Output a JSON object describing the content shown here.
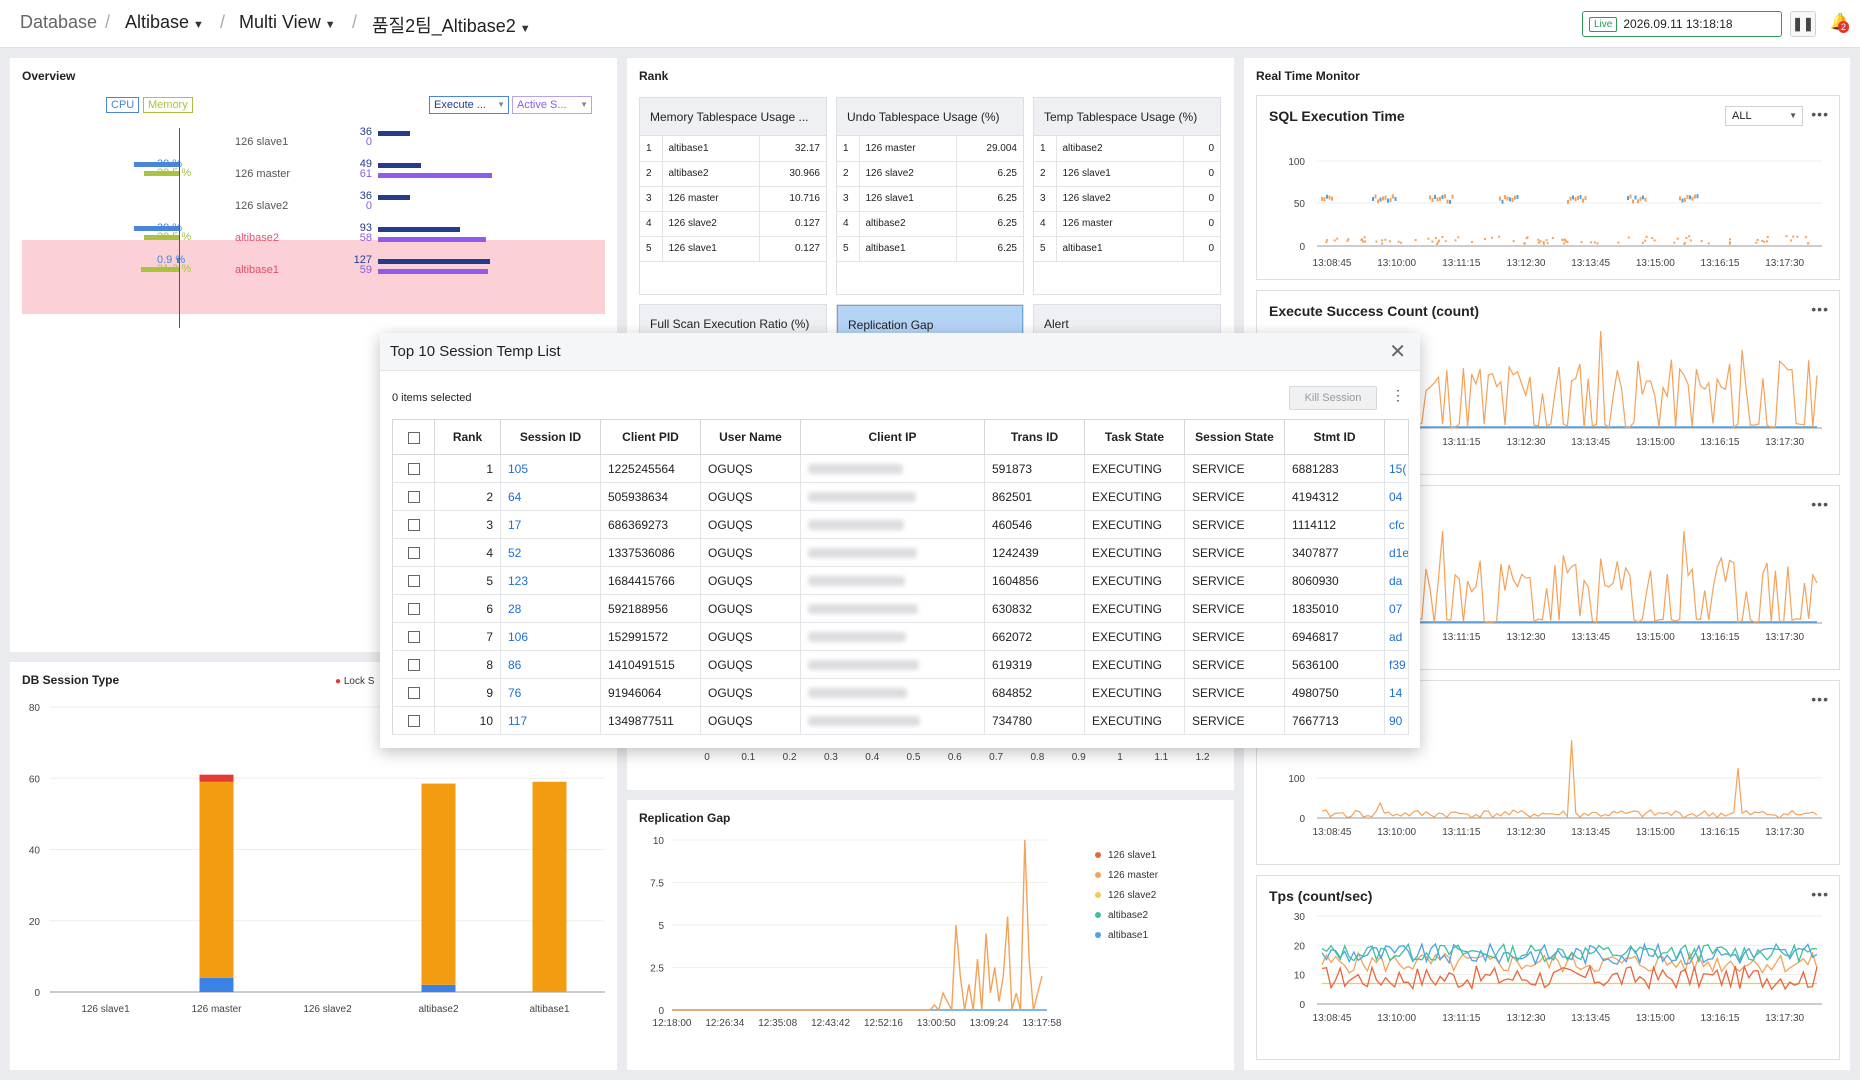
{
  "breadcrumb": {
    "root": "Database",
    "db": "Altibase",
    "view": "Multi View",
    "group": "품질2팀_Altibase2"
  },
  "live": {
    "badge": "Live",
    "timestamp": "2026.09.11 13:18:18"
  },
  "notifications": {
    "count": "2"
  },
  "overview": {
    "title": "Overview",
    "toggles": {
      "cpu": "CPU",
      "memory": "Memory"
    },
    "selects": [
      "Execute ...",
      "Active S..."
    ],
    "rows": [
      {
        "name": "126 slave1",
        "cpu": "",
        "mem": "",
        "exec": "36",
        "active": "0",
        "cpu_v": 0,
        "mem_v": 0,
        "exec_v": 36,
        "active_v": 0,
        "alert": false
      },
      {
        "name": "126 master",
        "cpu": "39 %",
        "mem": "29.5 %",
        "exec": "49",
        "active": "61",
        "cpu_v": 39,
        "mem_v": 29.5,
        "exec_v": 49,
        "active_v": 61,
        "alert": false
      },
      {
        "name": "126 slave2",
        "cpu": "",
        "mem": "",
        "exec": "36",
        "active": "0",
        "cpu_v": 0,
        "mem_v": 0,
        "exec_v": 36,
        "active_v": 0,
        "alert": false
      },
      {
        "name": "altibase2",
        "cpu": "39 %",
        "mem": "29.5 %",
        "exec": "93",
        "active": "58",
        "cpu_v": 39,
        "mem_v": 29.5,
        "exec_v": 93,
        "active_v": 58,
        "alert": true
      },
      {
        "name": "altibase1",
        "cpu": "0.9 %",
        "mem": "31.3 %",
        "exec": "127",
        "active": "59",
        "cpu_v": 0.9,
        "mem_v": 31.3,
        "exec_v": 127,
        "active_v": 59,
        "alert": true
      }
    ],
    "colors": {
      "cpu": "#4a85d8",
      "mem": "#a9c23f",
      "exec": "#233c8c",
      "active": "#8e5ce6",
      "alert_bg": "#fbd0d7",
      "alert_text": "#e0506a"
    }
  },
  "rank": {
    "title": "Rank",
    "tables": [
      {
        "title": "Memory Tablespace Usage ...",
        "rows": [
          [
            "1",
            "altibase1",
            "32.17"
          ],
          [
            "2",
            "altibase2",
            "30.966"
          ],
          [
            "3",
            "126 master",
            "10.716"
          ],
          [
            "4",
            "126 slave2",
            "0.127"
          ],
          [
            "5",
            "126 slave1",
            "0.127"
          ]
        ]
      },
      {
        "title": "Undo Tablespace Usage (%)",
        "rows": [
          [
            "1",
            "126 master",
            "29.004"
          ],
          [
            "2",
            "126 slave2",
            "6.25"
          ],
          [
            "3",
            "126 slave1",
            "6.25"
          ],
          [
            "4",
            "altibase2",
            "6.25"
          ],
          [
            "5",
            "altibase1",
            "6.25"
          ]
        ]
      },
      {
        "title": "Temp Tablespace Usage (%)",
        "rows": [
          [
            "1",
            "altibase2",
            "0"
          ],
          [
            "2",
            "126 slave1",
            "0"
          ],
          [
            "3",
            "126 slave2",
            "0"
          ],
          [
            "4",
            "126 master",
            "0"
          ],
          [
            "5",
            "altibase1",
            "0"
          ]
        ]
      }
    ],
    "second_row": [
      "Full Scan Execution Ratio (%)",
      "Replication Gap",
      "Alert"
    ]
  },
  "hidden_axis": {
    "ticks": [
      "0",
      "0.1",
      "0.2",
      "0.3",
      "0.4",
      "0.5",
      "0.6",
      "0.7",
      "0.8",
      "0.9",
      "1",
      "1.1",
      "1.2"
    ]
  },
  "realtime": {
    "title": "Real Time Monitor",
    "select_value": "ALL",
    "x_ticks": [
      "13:08:45",
      "13:10:00",
      "13:11:15",
      "13:12:30",
      "13:13:45",
      "13:15:00",
      "13:16:15",
      "13:17:30"
    ],
    "sql_exec": {
      "title": "SQL Execution Time",
      "y_ticks": [
        "100",
        "50",
        "0"
      ]
    },
    "exec_success": {
      "title": "Execute Success Count (count)"
    },
    "hidden_chart_y": [
      "100",
      "0"
    ],
    "tps": {
      "title": "Tps (count/sec)",
      "y_ticks": [
        "30",
        "20",
        "10",
        "0"
      ]
    }
  },
  "session_type": {
    "title": "DB Session Type",
    "legend_partial": "Lock S",
    "chart_data": {
      "type": "bar",
      "categories": [
        "126 slave1",
        "126 master",
        "126 slave2",
        "altibase2",
        "altibase1"
      ],
      "series": [
        {
          "name": "",
          "color": "#3b82e6",
          "values": [
            0,
            4,
            0,
            2,
            0
          ]
        },
        {
          "name": "",
          "color": "#f39c12",
          "values": [
            0,
            55,
            0,
            56.5,
            59
          ]
        },
        {
          "name": "Lock S",
          "color": "#e53935",
          "values": [
            0,
            2,
            0,
            0,
            0
          ]
        }
      ],
      "ylim": [
        0,
        80
      ],
      "y_ticks": [
        "80",
        "60",
        "40",
        "20",
        "0"
      ]
    }
  },
  "replication_gap": {
    "title": "Replication Gap",
    "chart_data": {
      "type": "line",
      "x_ticks": [
        "12:18:00",
        "12:26:34",
        "12:35:08",
        "12:43:42",
        "12:52:16",
        "13:00:50",
        "13:09:24",
        "13:17:58"
      ],
      "y_ticks": [
        "10",
        "7.5",
        "5",
        "2.5",
        "0"
      ],
      "ylim": [
        0,
        10
      ],
      "legend": [
        {
          "name": "126 slave1",
          "color": "#e8663d"
        },
        {
          "name": "126 master",
          "color": "#f4a259"
        },
        {
          "name": "126 slave2",
          "color": "#f6c94f"
        },
        {
          "name": "altibase2",
          "color": "#3cc0a0"
        },
        {
          "name": "altibase1",
          "color": "#4ea1e8"
        }
      ],
      "series_master": [
        0,
        0,
        0,
        0,
        0,
        0,
        0,
        0,
        0,
        0,
        0,
        0,
        0,
        0,
        0,
        0,
        0,
        0,
        0,
        0,
        0,
        0,
        0,
        0,
        0,
        0,
        0,
        0,
        0,
        0,
        0,
        0,
        0,
        0,
        0,
        0,
        0,
        0,
        0,
        0,
        0,
        0,
        0,
        0,
        0,
        0,
        0,
        0,
        0,
        0,
        0,
        0,
        0,
        0,
        0,
        0,
        0,
        0,
        0,
        0,
        0,
        0.3,
        0,
        1,
        0.5,
        0,
        5,
        2,
        0,
        1.5,
        0,
        3,
        0,
        4.5,
        1,
        2.5,
        0.5,
        2,
        5.5,
        0,
        1,
        0,
        10,
        3,
        0,
        1,
        2
      ]
    }
  },
  "modal": {
    "title": "Top 10 Session Temp List",
    "selected_info": "0 items selected",
    "kill_label": "Kill Session",
    "columns": [
      "Rank",
      "Session ID",
      "Client PID",
      "User Name",
      "Client IP",
      "Trans ID",
      "Task State",
      "Session State",
      "Stmt ID"
    ],
    "rows": [
      {
        "rank": "1",
        "sid": "105",
        "pid": "1225245564",
        "user": "OGUQS",
        "tid": "591873",
        "task": "EXECUTING",
        "state": "SERVICE",
        "stmt": "6881283",
        "extra": "15("
      },
      {
        "rank": "2",
        "sid": "64",
        "pid": "505938634",
        "user": "OGUQS",
        "tid": "862501",
        "task": "EXECUTING",
        "state": "SERVICE",
        "stmt": "4194312",
        "extra": "04"
      },
      {
        "rank": "3",
        "sid": "17",
        "pid": "686369273",
        "user": "OGUQS",
        "tid": "460546",
        "task": "EXECUTING",
        "state": "SERVICE",
        "stmt": "1114112",
        "extra": "cfc"
      },
      {
        "rank": "4",
        "sid": "52",
        "pid": "1337536086",
        "user": "OGUQS",
        "tid": "1242439",
        "task": "EXECUTING",
        "state": "SERVICE",
        "stmt": "3407877",
        "extra": "d1e"
      },
      {
        "rank": "5",
        "sid": "123",
        "pid": "1684415766",
        "user": "OGUQS",
        "tid": "1604856",
        "task": "EXECUTING",
        "state": "SERVICE",
        "stmt": "8060930",
        "extra": "da"
      },
      {
        "rank": "6",
        "sid": "28",
        "pid": "592188956",
        "user": "OGUQS",
        "tid": "630832",
        "task": "EXECUTING",
        "state": "SERVICE",
        "stmt": "1835010",
        "extra": "07"
      },
      {
        "rank": "7",
        "sid": "106",
        "pid": "152991572",
        "user": "OGUQS",
        "tid": "662072",
        "task": "EXECUTING",
        "state": "SERVICE",
        "stmt": "6946817",
        "extra": "ad"
      },
      {
        "rank": "8",
        "sid": "86",
        "pid": "1410491515",
        "user": "OGUQS",
        "tid": "619319",
        "task": "EXECUTING",
        "state": "SERVICE",
        "stmt": "5636100",
        "extra": "f39"
      },
      {
        "rank": "9",
        "sid": "76",
        "pid": "91946064",
        "user": "OGUQS",
        "tid": "684852",
        "task": "EXECUTING",
        "state": "SERVICE",
        "stmt": "4980750",
        "extra": "14"
      },
      {
        "rank": "10",
        "sid": "117",
        "pid": "1349877511",
        "user": "OGUQS",
        "tid": "734780",
        "task": "EXECUTING",
        "state": "SERVICE",
        "stmt": "7667713",
        "extra": "90"
      }
    ]
  }
}
